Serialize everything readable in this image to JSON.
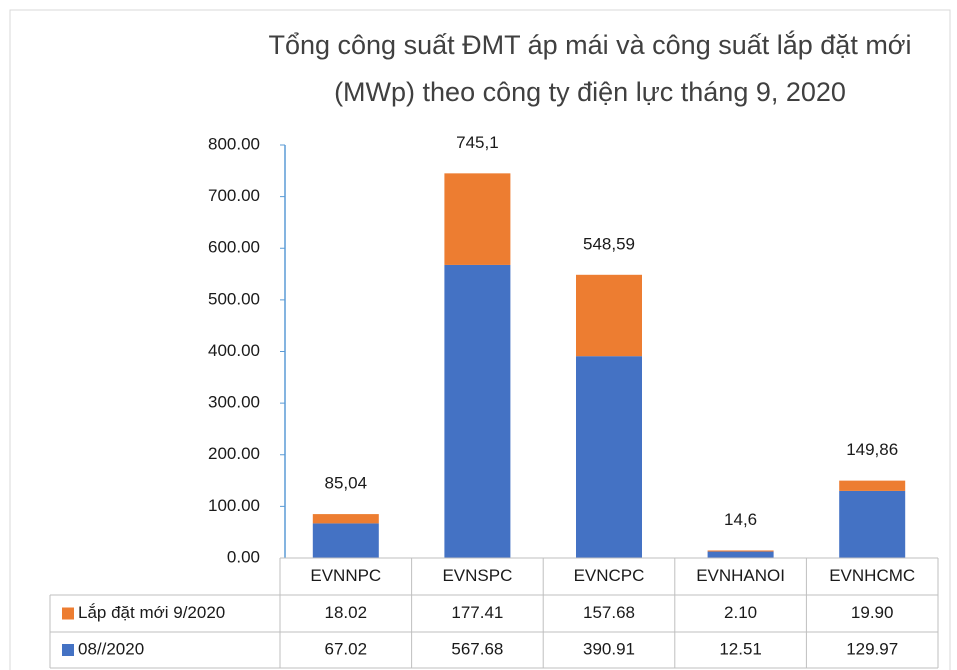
{
  "chart_data": {
    "type": "bar",
    "stacked": true,
    "title": "Tổng công suất ĐMT áp mái và công suất lắp đặt mới (MWp) theo công ty điện lực tháng 9, 2020",
    "categories": [
      "EVNNPC",
      "EVNSPC",
      "EVNCPC",
      "EVNHANOI",
      "EVNHCMC"
    ],
    "series": [
      {
        "name": "Lắp đặt mới 9/2020",
        "color": "#ed7d31",
        "values": [
          18.02,
          177.41,
          157.68,
          2.1,
          19.9
        ],
        "value_labels": [
          "18.02",
          "177.41",
          "157.68",
          "2.10",
          "19.90"
        ]
      },
      {
        "name": "08//2020",
        "color": "#4472c4",
        "values": [
          67.02,
          567.68,
          390.91,
          12.51,
          129.97
        ],
        "value_labels": [
          "67.02",
          "567.68",
          "390.91",
          "12.51",
          "129.97"
        ]
      }
    ],
    "totals": [
      85.04,
      745.1,
      548.59,
      14.6,
      149.86
    ],
    "total_labels": [
      "85,04",
      "745,1",
      "548,59",
      "14,6",
      "149,86"
    ],
    "ylim": [
      0,
      800
    ],
    "yticks": [
      {
        "value": 0,
        "label": "0.00"
      },
      {
        "value": 100,
        "label": "100.00"
      },
      {
        "value": 200,
        "label": "200.00"
      },
      {
        "value": 300,
        "label": "300.00"
      },
      {
        "value": 400,
        "label": "400.00"
      },
      {
        "value": 500,
        "label": "500.00"
      },
      {
        "value": 600,
        "label": "600.00"
      },
      {
        "value": 700,
        "label": "700.00"
      },
      {
        "value": 800,
        "label": "800.00"
      }
    ],
    "grid": false,
    "data_table": true
  }
}
